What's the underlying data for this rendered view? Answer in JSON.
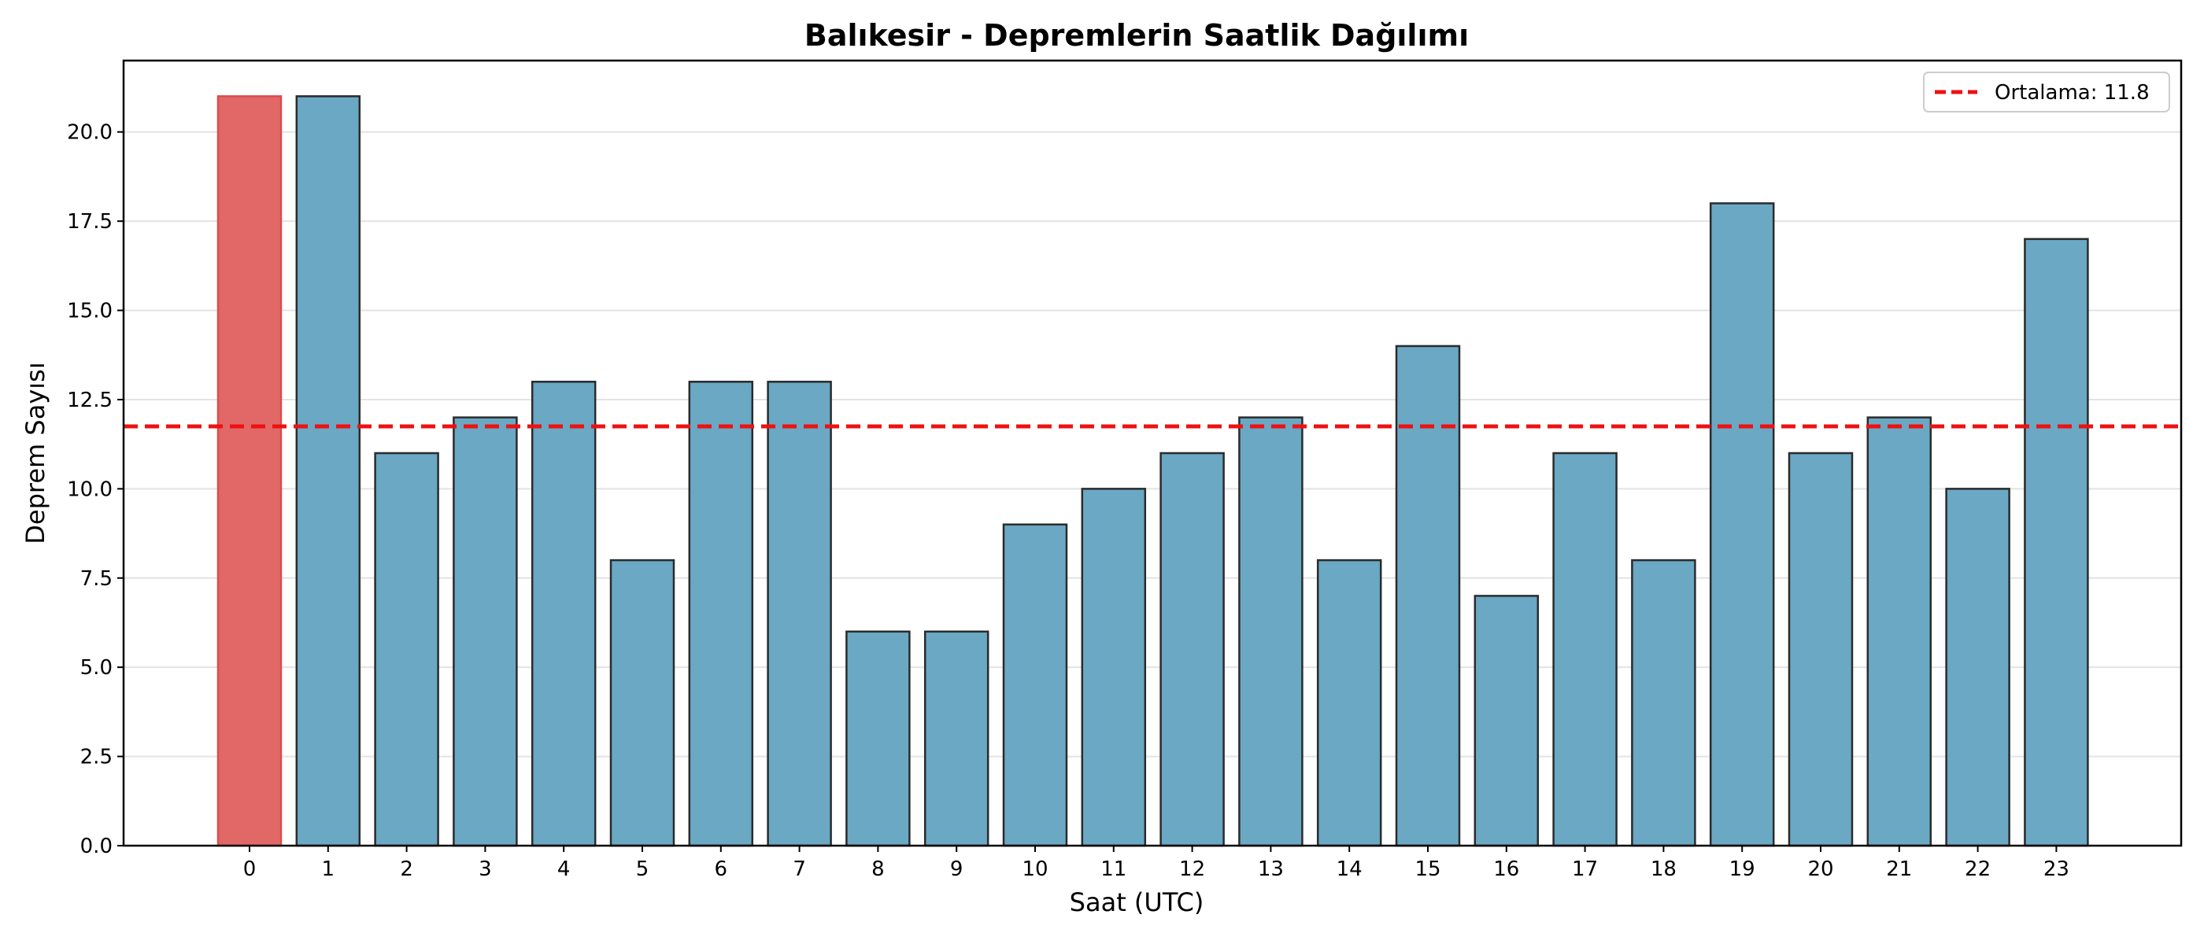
{
  "chart_data": {
    "type": "bar",
    "title": "Balıkesir - Depremlerin Saatlik Dağılımı",
    "xlabel": "Saat (UTC)",
    "ylabel": "Deprem Sayısı",
    "categories": [
      "0",
      "1",
      "2",
      "3",
      "4",
      "5",
      "6",
      "7",
      "8",
      "9",
      "10",
      "11",
      "12",
      "13",
      "14",
      "15",
      "16",
      "17",
      "18",
      "19",
      "20",
      "21",
      "22",
      "23"
    ],
    "values": [
      21,
      21,
      11,
      12,
      13,
      8,
      13,
      13,
      6,
      6,
      9,
      10,
      11,
      12,
      8,
      14,
      7,
      11,
      8,
      18,
      11,
      12,
      10,
      17
    ],
    "ylim": [
      0,
      22
    ],
    "yticks": [
      "0.0",
      "2.5",
      "5.0",
      "7.5",
      "10.0",
      "12.5",
      "15.0",
      "17.5",
      "20.0"
    ],
    "highlight_index": 0,
    "mean_line": {
      "value": 11.75,
      "label": "Ortalama: 11.8"
    },
    "grid": "y",
    "legend_position": "top-right",
    "colors": {
      "bar": "#6aa8c4",
      "highlight": "#e26868",
      "edge": "#2b2b2b",
      "mean_line": "#ee1111",
      "grid": "#e3e3e3"
    }
  }
}
